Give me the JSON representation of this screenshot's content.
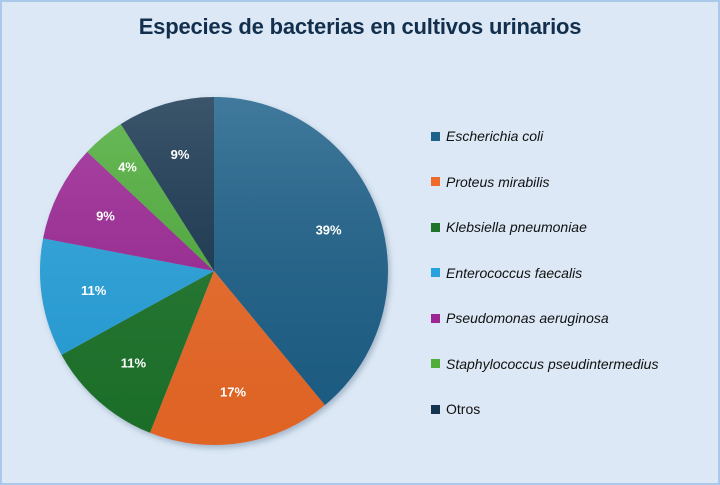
{
  "chart_data": {
    "type": "pie",
    "title": "Especies de bacterias en cultivos urinarios",
    "categories": [
      "Escherichia coli",
      "Proteus mirabilis",
      "Klebsiella pneumoniae",
      "Enterococcus faecalis",
      "Pseudomonas aeruginosa",
      "Staphylococcus pseudintermedius",
      "Otros"
    ],
    "values": [
      39,
      17,
      11,
      11,
      9,
      4,
      9
    ],
    "unit": "%",
    "data_labels": [
      "39%",
      "17%",
      "11%",
      "11%",
      "9%",
      "4%",
      "9%"
    ],
    "colors": [
      "#1f6189",
      "#ee6a28",
      "#1f7429",
      "#26a3de",
      "#9d2596",
      "#4fae3a",
      "#15354f"
    ],
    "start_angle_deg": 0,
    "direction": "clockwise",
    "legend_position": "right"
  },
  "legend": {
    "items": [
      {
        "label": "Escherichia coli",
        "italic": true
      },
      {
        "label": "Proteus mirabilis",
        "italic": true
      },
      {
        "label": "Klebsiella pneumoniae",
        "italic": true
      },
      {
        "label": "Enterococcus faecalis",
        "italic": true
      },
      {
        "label": "Pseudomonas aeruginosa",
        "italic": true
      },
      {
        "label": "Staphylococcus pseudintermedius",
        "italic": true
      },
      {
        "label": "Otros",
        "italic": false
      }
    ]
  },
  "style": {
    "background": "#dce8f5",
    "border": "#a9c8ea",
    "title_color": "#12304d"
  }
}
